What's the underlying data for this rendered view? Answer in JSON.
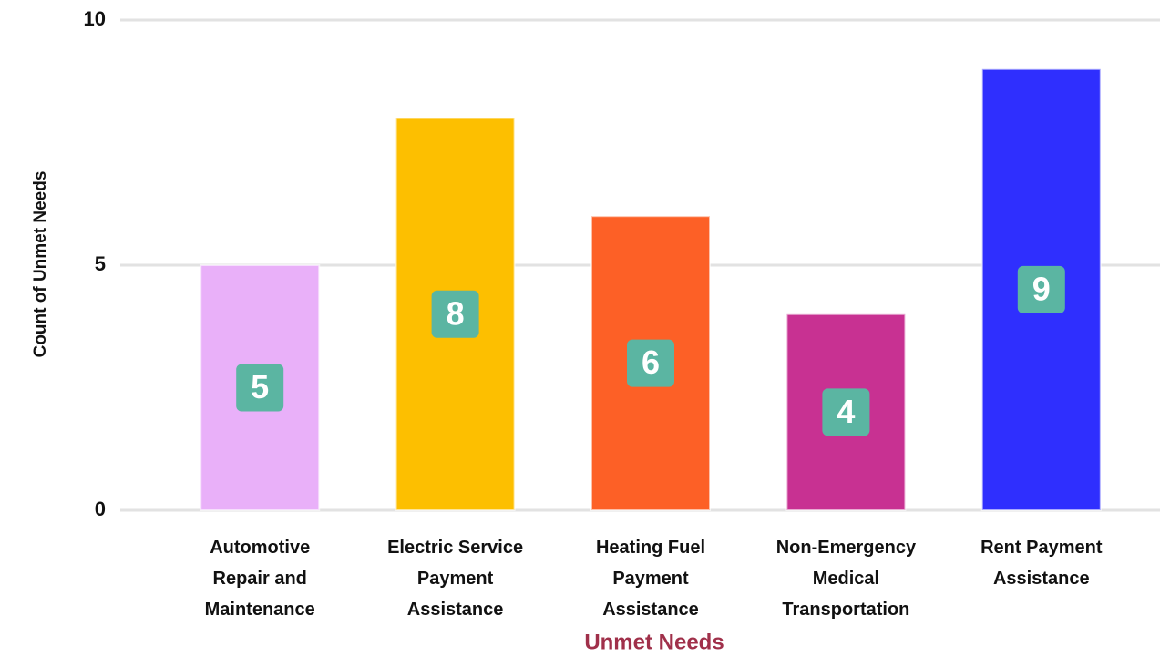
{
  "chart_data": {
    "type": "bar",
    "categories": [
      "Automotive Repair and Maintenance",
      "Electric Service Payment Assistance",
      "Heating Fuel Payment Assistance",
      "Non-Emergency Medical Transportation",
      "Rent Payment Assistance"
    ],
    "values": [
      5,
      8,
      6,
      4,
      9
    ],
    "colors": [
      "#e9b0f9",
      "#fdbf00",
      "#fd6026",
      "#c83192",
      "#2f2ffe"
    ],
    "label_color": "#5bb5a2",
    "xlabel": "Unmet Needs",
    "ylabel": "Count of Unmet Needs",
    "ylim": [
      0,
      10
    ],
    "yticks": [
      0,
      5,
      10
    ],
    "grid": true
  }
}
